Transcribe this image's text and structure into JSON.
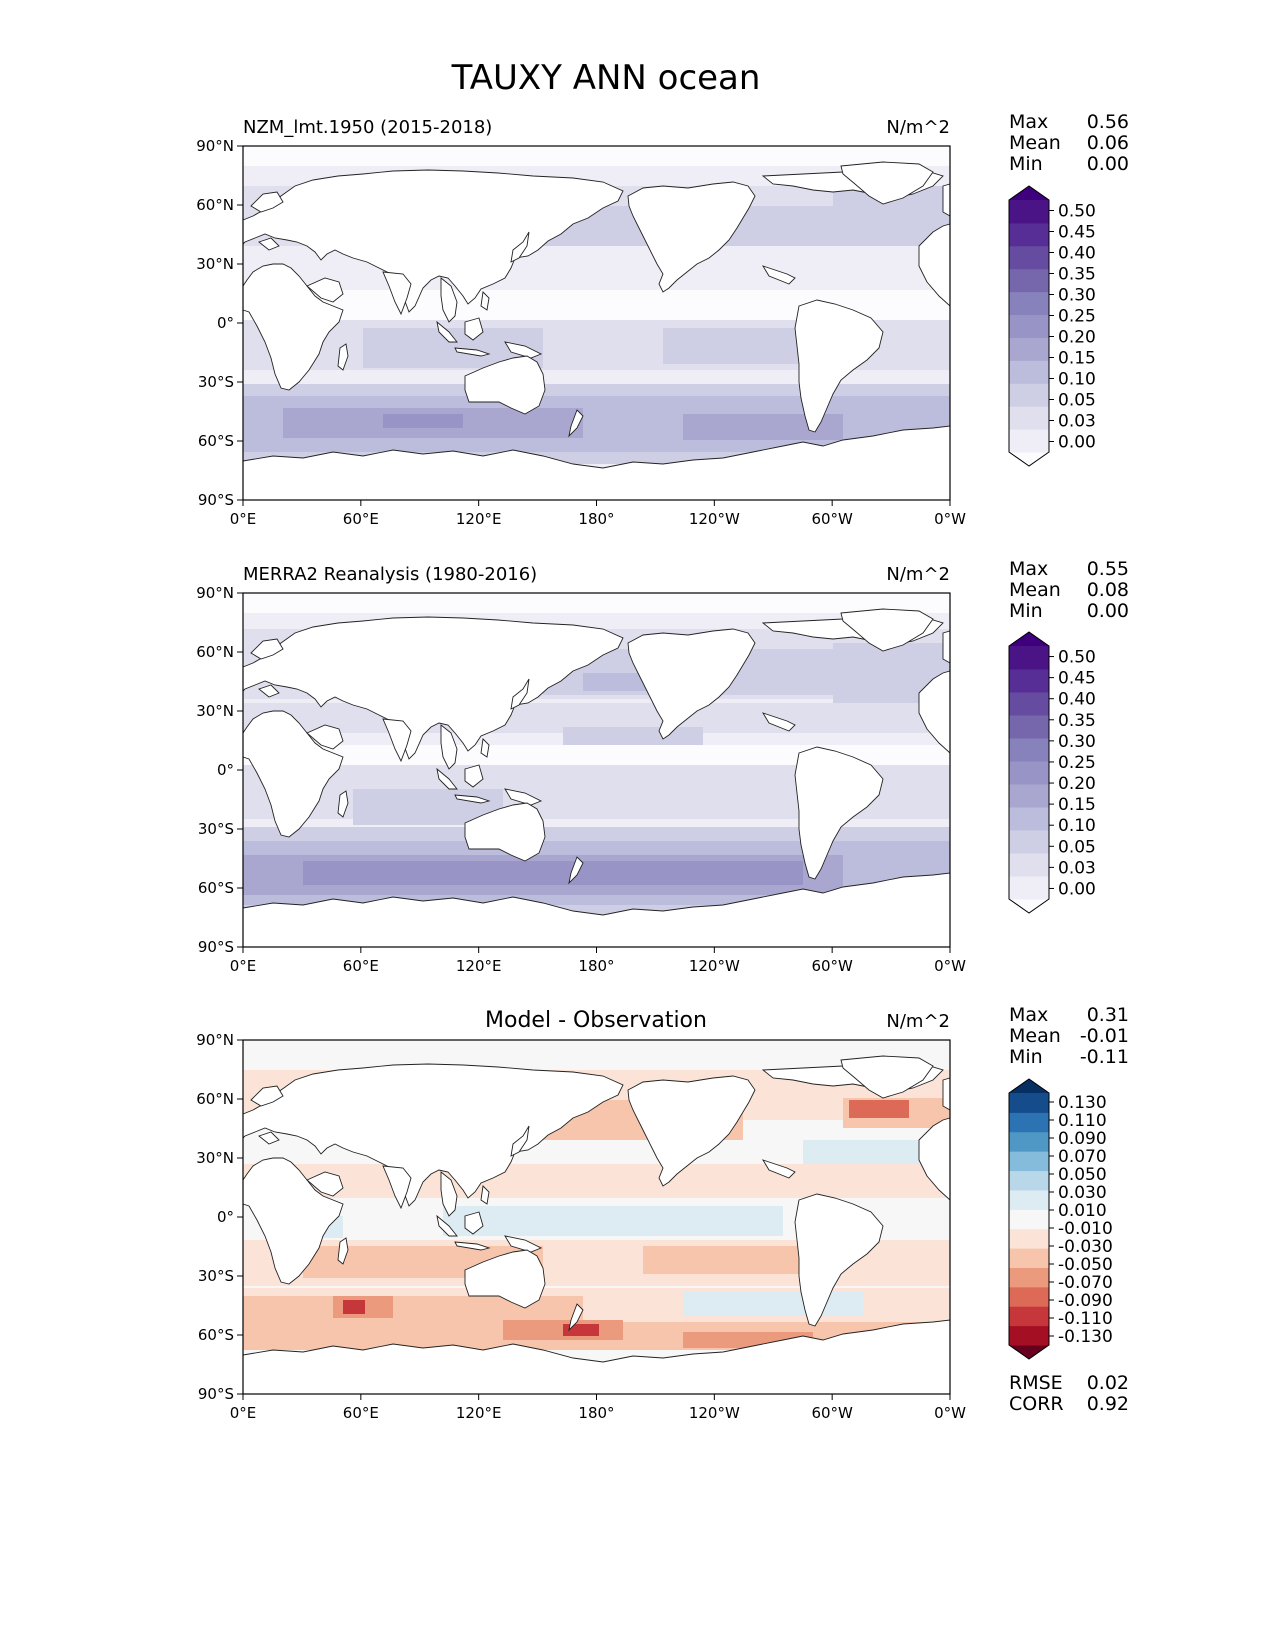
{
  "title": "TAUXY ANN ocean",
  "chart_data": [
    {
      "type": "heatmap",
      "panel": "test",
      "title": "NZM_lmt.1950 (2015-2018)",
      "units": "N/m^2",
      "stats": [
        {
          "label": "Max",
          "value": "0.56"
        },
        {
          "label": "Mean",
          "value": "0.06"
        },
        {
          "label": "Min",
          "value": "0.00"
        }
      ],
      "colorbar": {
        "levels": [
          "0.00",
          "0.03",
          "0.05",
          "0.10",
          "0.15",
          "0.20",
          "0.25",
          "0.30",
          "0.35",
          "0.40",
          "0.45",
          "0.50"
        ],
        "colors": [
          "#fcfbfd",
          "#efedf5",
          "#e0dfee",
          "#cecee5",
          "#bcbddc",
          "#a9a7cf",
          "#9894c6",
          "#8782bc",
          "#7667ad",
          "#664ca1",
          "#572e95",
          "#4a1486",
          "#3f007d"
        ],
        "extend": "both"
      }
    },
    {
      "type": "heatmap",
      "panel": "reference",
      "title": "MERRA2 Reanalysis (1980-2016)",
      "units": "N/m^2",
      "stats": [
        {
          "label": "Max",
          "value": "0.55"
        },
        {
          "label": "Mean",
          "value": "0.08"
        },
        {
          "label": "Min",
          "value": "0.00"
        }
      ],
      "colorbar": {
        "levels": [
          "0.00",
          "0.03",
          "0.05",
          "0.10",
          "0.15",
          "0.20",
          "0.25",
          "0.30",
          "0.35",
          "0.40",
          "0.45",
          "0.50"
        ],
        "colors": [
          "#fcfbfd",
          "#efedf5",
          "#e0dfee",
          "#cecee5",
          "#bcbddc",
          "#a9a7cf",
          "#9894c6",
          "#8782bc",
          "#7667ad",
          "#664ca1",
          "#572e95",
          "#4a1486",
          "#3f007d"
        ],
        "extend": "both"
      }
    },
    {
      "type": "heatmap",
      "panel": "difference",
      "title": "Model - Observation",
      "units": "N/m^2",
      "stats": [
        {
          "label": "Max",
          "value": "0.31"
        },
        {
          "label": "Mean",
          "value": "-0.01"
        },
        {
          "label": "Min",
          "value": "-0.11"
        }
      ],
      "bottom_stats": [
        {
          "label": "RMSE",
          "value": "0.02"
        },
        {
          "label": "CORR",
          "value": "0.92"
        }
      ],
      "colorbar": {
        "levels": [
          "-0.130",
          "-0.110",
          "-0.090",
          "-0.070",
          "-0.050",
          "-0.030",
          "-0.010",
          "0.010",
          "0.030",
          "0.050",
          "0.070",
          "0.090",
          "0.110",
          "0.130"
        ],
        "colors": [
          "#67001f",
          "#a50f23",
          "#c5373b",
          "#dc6a57",
          "#ec9a7d",
          "#f7c5ac",
          "#fbe4d7",
          "#f7f7f7",
          "#ddebf2",
          "#b8d7e8",
          "#85bcdb",
          "#4f98c6",
          "#2b73b2",
          "#154c8c",
          "#053061"
        ],
        "extend": "both"
      }
    }
  ],
  "axes": {
    "lat_ticks": [
      "90°N",
      "60°N",
      "30°N",
      "0°",
      "30°S",
      "60°S",
      "90°S"
    ],
    "lon_ticks": [
      "0°E",
      "60°E",
      "120°E",
      "180°",
      "120°W",
      "60°W",
      "0°W"
    ]
  }
}
